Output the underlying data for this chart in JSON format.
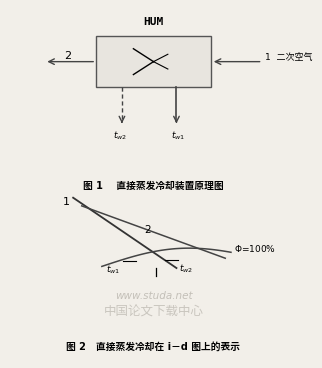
{
  "bg_color": "#f2efe9",
  "fig1": {
    "title": "HUM",
    "label1": "图 1    直接蒸发冷却装置原理图",
    "label_1": "1  二次空气",
    "label_2": "2",
    "label_tw1": "$t_{w1}$",
    "label_tw2": "$t_{w2}$"
  },
  "fig2": {
    "label": "图 2   直接蒸发冷却在 i－d 图上的表示",
    "label_phi": "$\\Phi$=100%",
    "label_1": "1",
    "label_2": "2",
    "label_tw1": "$t_{w1}$",
    "label_tw2": "$t_{w2}$"
  },
  "watermark1": "www.studa.net",
  "watermark2": "中国论文下载中心"
}
